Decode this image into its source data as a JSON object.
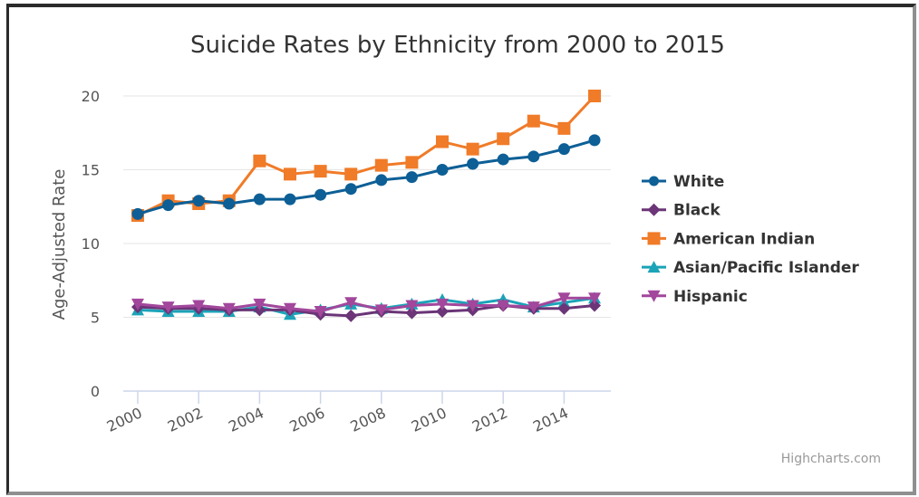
{
  "chart_data": {
    "type": "line",
    "title": "Suicide Rates by Ethnicity from 2000 to 2015",
    "xlabel": "",
    "ylabel": "Age-Adjusted Rate",
    "x": [
      2000,
      2001,
      2002,
      2003,
      2004,
      2005,
      2006,
      2007,
      2008,
      2009,
      2010,
      2011,
      2012,
      2013,
      2014,
      2015
    ],
    "xticks": [
      "2000",
      "2002",
      "2004",
      "2006",
      "2008",
      "2010",
      "2012",
      "2014"
    ],
    "xtick_values": [
      2000,
      2002,
      2004,
      2006,
      2008,
      2010,
      2012,
      2014
    ],
    "yticks": [
      "0",
      "5",
      "10",
      "15",
      "20"
    ],
    "ytick_values": [
      0,
      5,
      10,
      15,
      20
    ],
    "ylim": [
      0,
      20
    ],
    "xlim": [
      2000,
      2015
    ],
    "grid": true,
    "legend_position": "right",
    "series": [
      {
        "name": "White",
        "color": "#0d5f96",
        "marker": "circle",
        "values": [
          12.0,
          12.6,
          12.9,
          12.7,
          13.0,
          13.0,
          13.3,
          13.7,
          14.3,
          14.5,
          15.0,
          15.4,
          15.7,
          15.9,
          16.4,
          17.0
        ]
      },
      {
        "name": "Black",
        "color": "#6b3577",
        "marker": "diamond",
        "values": [
          5.7,
          5.6,
          5.6,
          5.5,
          5.5,
          5.5,
          5.2,
          5.1,
          5.4,
          5.3,
          5.4,
          5.5,
          5.8,
          5.6,
          5.6,
          5.8
        ]
      },
      {
        "name": "American Indian",
        "color": "#f07b28",
        "marker": "square",
        "values": [
          11.9,
          12.9,
          12.7,
          12.9,
          15.6,
          14.7,
          14.9,
          14.7,
          15.3,
          15.5,
          16.9,
          16.4,
          17.1,
          18.3,
          17.8,
          20.0
        ]
      },
      {
        "name": "Asian/Pacific Islander",
        "color": "#1ba3b8",
        "marker": "triangle",
        "values": [
          5.5,
          5.4,
          5.4,
          5.4,
          5.7,
          5.2,
          5.5,
          5.9,
          5.6,
          5.9,
          6.2,
          5.9,
          6.2,
          5.7,
          6.0,
          6.3
        ]
      },
      {
        "name": "Hispanic",
        "color": "#a2479c",
        "marker": "triangle-down",
        "values": [
          5.9,
          5.7,
          5.8,
          5.6,
          5.9,
          5.6,
          5.4,
          6.0,
          5.5,
          5.8,
          5.9,
          5.8,
          5.8,
          5.7,
          6.3,
          6.3
        ]
      }
    ],
    "credits": "Highcharts.com"
  }
}
